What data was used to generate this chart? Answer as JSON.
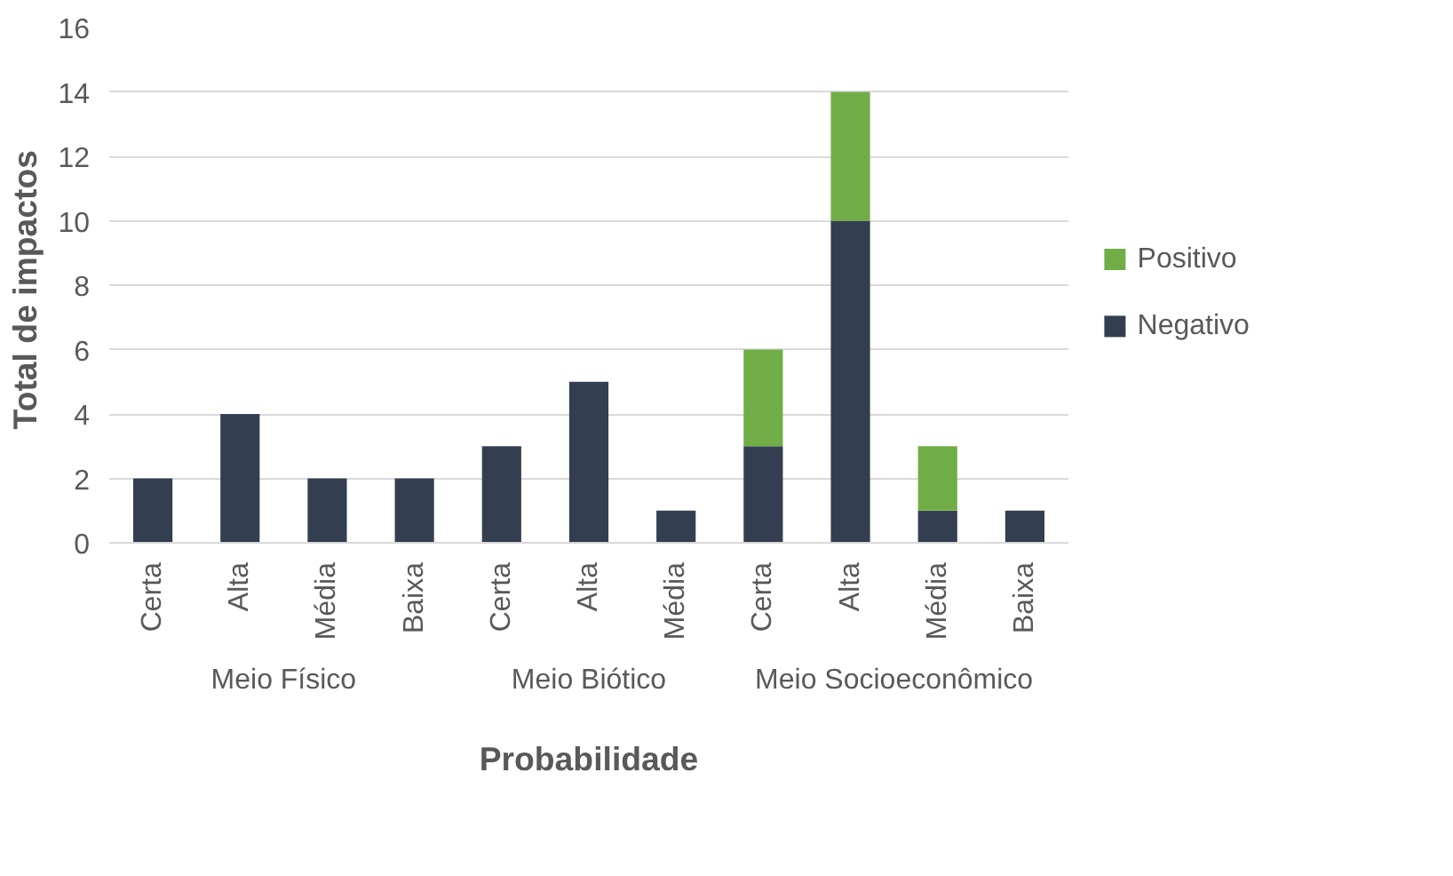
{
  "chart_data": {
    "type": "bar",
    "stacked": true,
    "xlabel": "Probabilidade",
    "ylabel": "Total de  impactos",
    "categories": [
      "Certa",
      "Alta",
      "Média",
      "Baixa",
      "Certa",
      "Alta",
      "Média",
      "Certa",
      "Alta",
      "Média",
      "Baixa"
    ],
    "series": [
      {
        "name": "Negativo",
        "color": "#333f50",
        "values": [
          2,
          4,
          2,
          2,
          3,
          5,
          1,
          3,
          10,
          1,
          1
        ]
      },
      {
        "name": "Positivo",
        "color": "#70ad47",
        "values": [
          0,
          0,
          0,
          0,
          0,
          0,
          0,
          3,
          4,
          2,
          0
        ]
      }
    ],
    "annotations": [
      "Meio Físico",
      "Meio Biótico",
      "Meio Socioeconômico"
    ],
    "ylim": [
      0,
      16
    ],
    "yticks": [
      0,
      2,
      4,
      6,
      8,
      10,
      12,
      14,
      16
    ],
    "grid": "y",
    "legend": "right"
  }
}
